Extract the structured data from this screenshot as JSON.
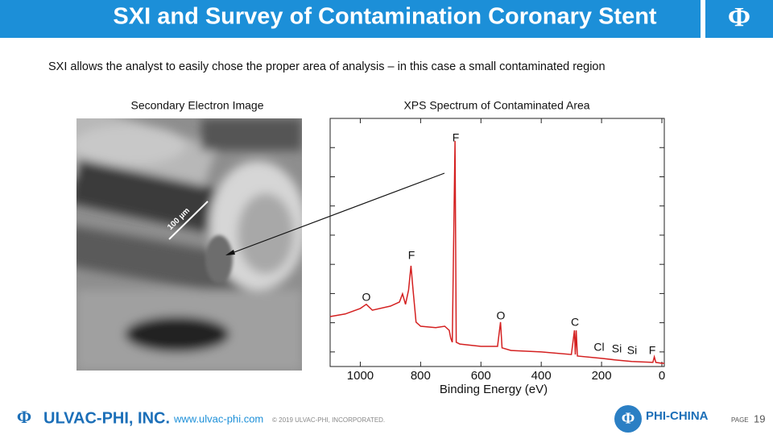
{
  "header": {
    "title": "SXI and Survey of Contamination Coronary Stent"
  },
  "subtitle": "SXI allows the analyst to easily chose the proper area of analysis – in this case a small contaminated region",
  "image": {
    "title": "Secondary Electron Image",
    "scale_label": "100 µm"
  },
  "chart_data": {
    "type": "line",
    "title": "XPS Spectrum of Contaminated Area",
    "x_label": "Binding Energy (eV)",
    "x": [
      1100,
      1050,
      1000,
      980,
      960,
      900,
      870,
      860,
      850,
      840,
      832,
      825,
      815,
      800,
      750,
      720,
      705,
      700,
      695,
      686,
      682,
      670,
      600,
      545,
      535,
      530,
      500,
      400,
      300,
      290,
      287,
      284,
      280,
      200,
      150,
      100,
      30,
      25,
      20,
      0,
      -8
    ],
    "values": [
      12.1,
      13,
      14.9,
      16.3,
      14.3,
      15.7,
      17.1,
      19.9,
      16.3,
      21.2,
      29.5,
      21.2,
      10.2,
      8.8,
      8.3,
      8.8,
      7.4,
      4.7,
      3.3,
      72.3,
      3.3,
      2.7,
      1.9,
      1.9,
      10.2,
      1.4,
      0.5,
      0,
      -0.9,
      7.4,
      -0.9,
      7.4,
      -1.4,
      -2.2,
      -2.8,
      -3.3,
      -3.6,
      -1.7,
      -3.6,
      -3.9,
      -3.9
    ],
    "color": "#d42020",
    "xlim": [
      1100,
      -8
    ],
    "xticks": [
      1000,
      800,
      600,
      400,
      200,
      0
    ],
    "ylim": [
      -5,
      80
    ],
    "yticks": [
      0,
      10,
      20,
      30,
      40,
      50,
      60,
      70
    ],
    "annotations": [
      "F",
      "F",
      "O",
      "O",
      "C",
      "Cl",
      "Si",
      "Si",
      "F"
    ]
  },
  "footer": {
    "company": "ULVAC-PHI, INC.",
    "url": "www.ulvac-phi.com",
    "copyright": "© 2019 ULVAC-PHI, INCORPORATED.",
    "brand": "PHI-CHINA",
    "page_label": "PAGE",
    "page_number": "19"
  }
}
